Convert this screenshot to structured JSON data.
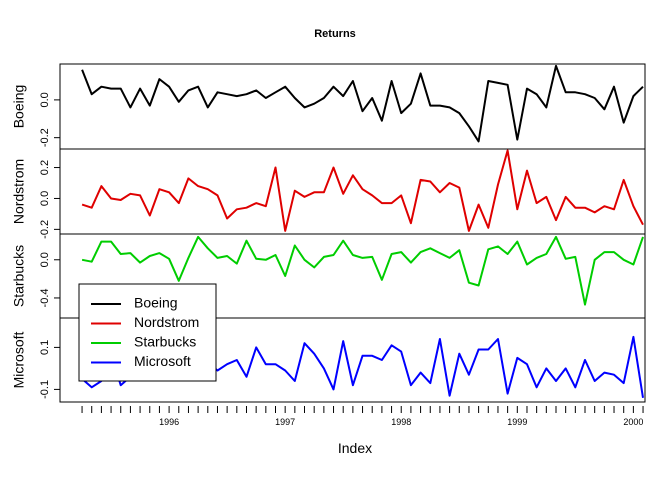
{
  "chart_data": {
    "type": "line",
    "title": "Returns",
    "xlabel": "Index",
    "x_start": 1995.25,
    "x_step": 0.08333,
    "x_ticks": [
      "1996",
      "1997",
      "1998",
      "1999",
      "2000"
    ],
    "panels": [
      {
        "ylabel": "Boeing",
        "color": "#000000",
        "ylim": [
          -0.26,
          0.19
        ],
        "yticks": [
          "0.0",
          "-0.2"
        ],
        "ytick_values": [
          0.0,
          -0.2
        ],
        "values": [
          0.16,
          0.03,
          0.07,
          0.06,
          0.06,
          -0.04,
          0.06,
          -0.03,
          0.11,
          0.07,
          -0.01,
          0.05,
          0.07,
          -0.04,
          0.04,
          0.03,
          0.02,
          0.03,
          0.05,
          0.01,
          0.04,
          0.07,
          0.01,
          -0.04,
          -0.02,
          0.01,
          0.07,
          0.02,
          0.1,
          -0.06,
          0.01,
          -0.11,
          0.1,
          -0.07,
          -0.02,
          0.14,
          -0.03,
          -0.03,
          -0.04,
          -0.07,
          -0.14,
          -0.22,
          0.1,
          0.09,
          0.08,
          -0.21,
          0.06,
          0.03,
          -0.04,
          0.18,
          0.04,
          0.04,
          0.03,
          0.01,
          -0.05,
          0.07,
          -0.12,
          0.02,
          0.07
        ]
      },
      {
        "ylabel": "Nordstrom",
        "color": "#df0000",
        "ylim": [
          -0.23,
          0.32
        ],
        "yticks": [
          "0.2",
          "0.0",
          "-0.2"
        ],
        "ytick_values": [
          0.2,
          0.0,
          -0.2
        ],
        "values": [
          -0.04,
          -0.06,
          0.08,
          0.0,
          -0.01,
          0.03,
          0.02,
          -0.11,
          0.06,
          0.04,
          -0.03,
          0.13,
          0.08,
          0.06,
          0.02,
          -0.13,
          -0.07,
          -0.06,
          -0.03,
          -0.05,
          0.2,
          -0.21,
          0.05,
          0.01,
          0.04,
          0.04,
          0.2,
          0.03,
          0.15,
          0.06,
          0.02,
          -0.03,
          -0.03,
          0.02,
          -0.16,
          0.12,
          0.11,
          0.04,
          0.1,
          0.07,
          -0.21,
          -0.04,
          -0.19,
          0.09,
          0.31,
          -0.07,
          0.18,
          -0.03,
          0.01,
          -0.14,
          0.01,
          -0.06,
          -0.06,
          -0.09,
          -0.05,
          -0.07,
          0.12,
          -0.05,
          -0.17
        ]
      },
      {
        "ylabel": "Starbucks",
        "color": "#00cd00",
        "ylim": [
          -0.61,
          0.27
        ],
        "yticks": [
          "0.0",
          "-0.4"
        ],
        "ytick_values": [
          0.0,
          -0.4
        ],
        "values": [
          0.0,
          -0.02,
          0.19,
          0.19,
          0.06,
          0.07,
          -0.03,
          0.04,
          0.07,
          0.01,
          -0.22,
          0.02,
          0.24,
          0.12,
          0.02,
          0.04,
          -0.04,
          0.2,
          0.01,
          0.0,
          0.05,
          -0.17,
          0.15,
          0.0,
          -0.08,
          0.03,
          0.05,
          0.2,
          0.05,
          0.02,
          0.03,
          -0.21,
          0.06,
          0.08,
          -0.03,
          0.08,
          0.12,
          0.07,
          0.02,
          0.1,
          -0.24,
          -0.27,
          0.11,
          0.14,
          0.06,
          0.19,
          -0.05,
          0.02,
          0.06,
          0.24,
          0.01,
          0.03,
          -0.47,
          0.0,
          0.08,
          0.08,
          0.0,
          -0.05,
          0.24
        ]
      },
      {
        "ylabel": "Microsoft",
        "color": "#0000ff",
        "ylim": [
          -0.16,
          0.24
        ],
        "yticks": [
          "0.1",
          "-0.1"
        ],
        "ytick_values": [
          0.1,
          -0.1
        ],
        "values": [
          -0.05,
          -0.09,
          -0.06,
          0.07,
          -0.08,
          -0.04,
          -0.03,
          -0.01,
          0.02,
          0.01,
          0.0,
          -0.04,
          0.15,
          0.03,
          -0.01,
          0.02,
          0.04,
          -0.04,
          0.1,
          0.02,
          0.02,
          -0.01,
          -0.06,
          0.12,
          0.07,
          0.0,
          -0.1,
          0.13,
          -0.08,
          0.06,
          0.06,
          0.04,
          0.11,
          0.08,
          -0.08,
          -0.02,
          -0.07,
          0.14,
          -0.13,
          0.07,
          -0.03,
          0.09,
          0.09,
          0.14,
          -0.12,
          0.05,
          0.02,
          -0.09,
          0.0,
          -0.06,
          0.0,
          -0.09,
          0.04,
          -0.06,
          -0.02,
          -0.03,
          -0.07,
          0.15,
          -0.14
        ]
      }
    ],
    "legend": {
      "position": "left",
      "entries": [
        "Boeing",
        "Nordstrom",
        "Starbucks",
        "Microsoft"
      ]
    },
    "grid": false
  }
}
